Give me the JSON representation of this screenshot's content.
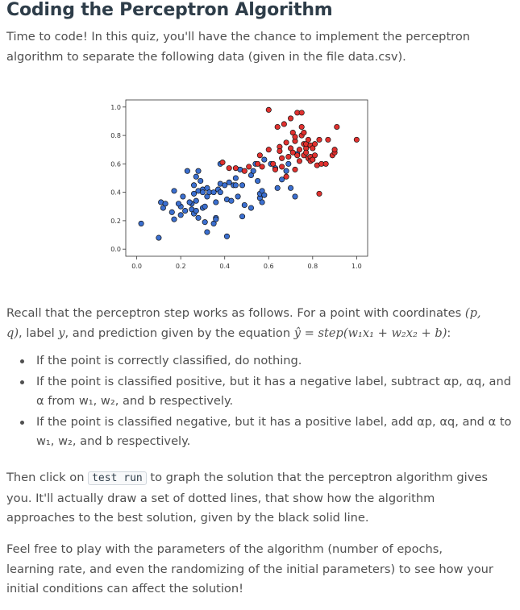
{
  "heading": "Coding the Perceptron Algorithm",
  "intro": "Time to code! In this quiz, you'll have the chance to implement the perceptron algorithm to separate the following data (given in the file data.csv).",
  "recall": {
    "before": "Recall that the perceptron step works as follows. For a point with coordinates ",
    "coords": "(p, q)",
    "mid1": ", label ",
    "label_var": "y",
    "mid2": ", and prediction given by the equation ",
    "equation": "ŷ = step(w₁x₁ + w₂x₂ + b)",
    "end": ":"
  },
  "bullets": [
    "If the point is correctly classified, do nothing.",
    "If the point is classified positive, but it has a negative label, subtract αp, αq, and α from w₁, w₂, and b respectively.",
    "If the point is classified negative, but it has a positive label, add αp, αq, and α to w₁, w₂, and b respectively."
  ],
  "test_run": {
    "before": "Then click on ",
    "code": "test run",
    "after": " to graph the solution that the perceptron algorithm gives you. It'll actually draw a set of dotted lines, that show how the algorithm approaches to the best solution, given by the black solid line."
  },
  "closing": "Feel free to play with the parameters of the algorithm (number of epochs, learning rate, and even the randomizing of the initial parameters) to see how your initial conditions can affect the solution!",
  "chart_data": {
    "type": "scatter",
    "xlim": [
      -0.05,
      1.05
    ],
    "ylim": [
      -0.05,
      1.05
    ],
    "xticks": [
      "0.0",
      "0.2",
      "0.4",
      "0.6",
      "0.8",
      "1.0"
    ],
    "yticks": [
      "0.0",
      "0.2",
      "0.4",
      "0.6",
      "0.8",
      "1.0"
    ],
    "grid": false,
    "colors": {
      "blue": "#3b6fd0",
      "red": "#e0312f",
      "edge": "#111111"
    },
    "series": [
      {
        "color": "blue",
        "points": [
          [
            0.02,
            0.18
          ],
          [
            0.1,
            0.08
          ],
          [
            0.12,
            0.29
          ],
          [
            0.11,
            0.33
          ],
          [
            0.13,
            0.32
          ],
          [
            0.16,
            0.26
          ],
          [
            0.17,
            0.21
          ],
          [
            0.17,
            0.41
          ],
          [
            0.2,
            0.3
          ],
          [
            0.2,
            0.24
          ],
          [
            0.19,
            0.32
          ],
          [
            0.21,
            0.37
          ],
          [
            0.22,
            0.27
          ],
          [
            0.23,
            0.55
          ],
          [
            0.25,
            0.32
          ],
          [
            0.24,
            0.33
          ],
          [
            0.25,
            0.28
          ],
          [
            0.26,
            0.25
          ],
          [
            0.26,
            0.39
          ],
          [
            0.27,
            0.27
          ],
          [
            0.26,
            0.45
          ],
          [
            0.27,
            0.51
          ],
          [
            0.28,
            0.55
          ],
          [
            0.28,
            0.22
          ],
          [
            0.27,
            0.34
          ],
          [
            0.29,
            0.48
          ],
          [
            0.28,
            0.41
          ],
          [
            0.3,
            0.42
          ],
          [
            0.3,
            0.29
          ],
          [
            0.31,
            0.19
          ],
          [
            0.31,
            0.3
          ],
          [
            0.3,
            0.4
          ],
          [
            0.32,
            0.37
          ],
          [
            0.32,
            0.12
          ],
          [
            0.32,
            0.43
          ],
          [
            0.33,
            0.4
          ],
          [
            0.35,
            0.4
          ],
          [
            0.35,
            0.18
          ],
          [
            0.36,
            0.22
          ],
          [
            0.36,
            0.21
          ],
          [
            0.36,
            0.33
          ],
          [
            0.37,
            0.42
          ],
          [
            0.38,
            0.4
          ],
          [
            0.38,
            0.46
          ],
          [
            0.38,
            0.6
          ],
          [
            0.4,
            0.45
          ],
          [
            0.41,
            0.35
          ],
          [
            0.42,
            0.47
          ],
          [
            0.41,
            0.09
          ],
          [
            0.43,
            0.34
          ],
          [
            0.44,
            0.45
          ],
          [
            0.45,
            0.5
          ],
          [
            0.45,
            0.45
          ],
          [
            0.46,
            0.37
          ],
          [
            0.47,
            0.56
          ],
          [
            0.48,
            0.45
          ],
          [
            0.48,
            0.23
          ],
          [
            0.49,
            0.31
          ],
          [
            0.52,
            0.29
          ],
          [
            0.52,
            0.52
          ],
          [
            0.53,
            0.55
          ],
          [
            0.54,
            0.6
          ],
          [
            0.55,
            0.48
          ],
          [
            0.56,
            0.36
          ],
          [
            0.56,
            0.39
          ],
          [
            0.57,
            0.41
          ],
          [
            0.57,
            0.33
          ],
          [
            0.58,
            0.38
          ],
          [
            0.58,
            0.63
          ],
          [
            0.61,
            0.6
          ],
          [
            0.63,
            0.57
          ],
          [
            0.64,
            0.43
          ],
          [
            0.66,
            0.49
          ],
          [
            0.68,
            0.55
          ],
          [
            0.69,
            0.6
          ],
          [
            0.7,
            0.43
          ],
          [
            0.72,
            0.37
          ],
          [
            0.73,
            0.67
          ]
        ]
      },
      {
        "color": "red",
        "points": [
          [
            0.39,
            0.61
          ],
          [
            0.42,
            0.57
          ],
          [
            0.45,
            0.57
          ],
          [
            0.49,
            0.55
          ],
          [
            0.51,
            0.58
          ],
          [
            0.55,
            0.6
          ],
          [
            0.56,
            0.66
          ],
          [
            0.57,
            0.58
          ],
          [
            0.6,
            0.7
          ],
          [
            0.6,
            0.98
          ],
          [
            0.62,
            0.6
          ],
          [
            0.63,
            0.56
          ],
          [
            0.64,
            0.86
          ],
          [
            0.65,
            0.72
          ],
          [
            0.65,
            0.69
          ],
          [
            0.66,
            0.64
          ],
          [
            0.66,
            0.58
          ],
          [
            0.67,
            0.88
          ],
          [
            0.68,
            0.75
          ],
          [
            0.68,
            0.51
          ],
          [
            0.69,
            0.65
          ],
          [
            0.7,
            0.71
          ],
          [
            0.7,
            0.92
          ],
          [
            0.71,
            0.82
          ],
          [
            0.71,
            0.68
          ],
          [
            0.72,
            0.76
          ],
          [
            0.72,
            0.79
          ],
          [
            0.72,
            0.56
          ],
          [
            0.73,
            0.66
          ],
          [
            0.73,
            0.96
          ],
          [
            0.74,
            0.7
          ],
          [
            0.74,
            0.62
          ],
          [
            0.75,
            0.96
          ],
          [
            0.75,
            0.86
          ],
          [
            0.75,
            0.8
          ],
          [
            0.76,
            0.74
          ],
          [
            0.76,
            0.82
          ],
          [
            0.76,
            0.66
          ],
          [
            0.77,
            0.71
          ],
          [
            0.77,
            0.74
          ],
          [
            0.77,
            0.68
          ],
          [
            0.78,
            0.64
          ],
          [
            0.78,
            0.77
          ],
          [
            0.79,
            0.73
          ],
          [
            0.79,
            0.65
          ],
          [
            0.79,
            0.62
          ],
          [
            0.8,
            0.71
          ],
          [
            0.8,
            0.63
          ],
          [
            0.81,
            0.74
          ],
          [
            0.81,
            0.66
          ],
          [
            0.82,
            0.59
          ],
          [
            0.83,
            0.77
          ],
          [
            0.83,
            0.39
          ],
          [
            0.84,
            0.6
          ],
          [
            0.86,
            0.6
          ],
          [
            0.87,
            0.77
          ],
          [
            0.89,
            0.66
          ],
          [
            0.9,
            0.68
          ],
          [
            0.9,
            0.7
          ],
          [
            0.91,
            0.86
          ],
          [
            1.0,
            0.77
          ]
        ]
      }
    ]
  }
}
